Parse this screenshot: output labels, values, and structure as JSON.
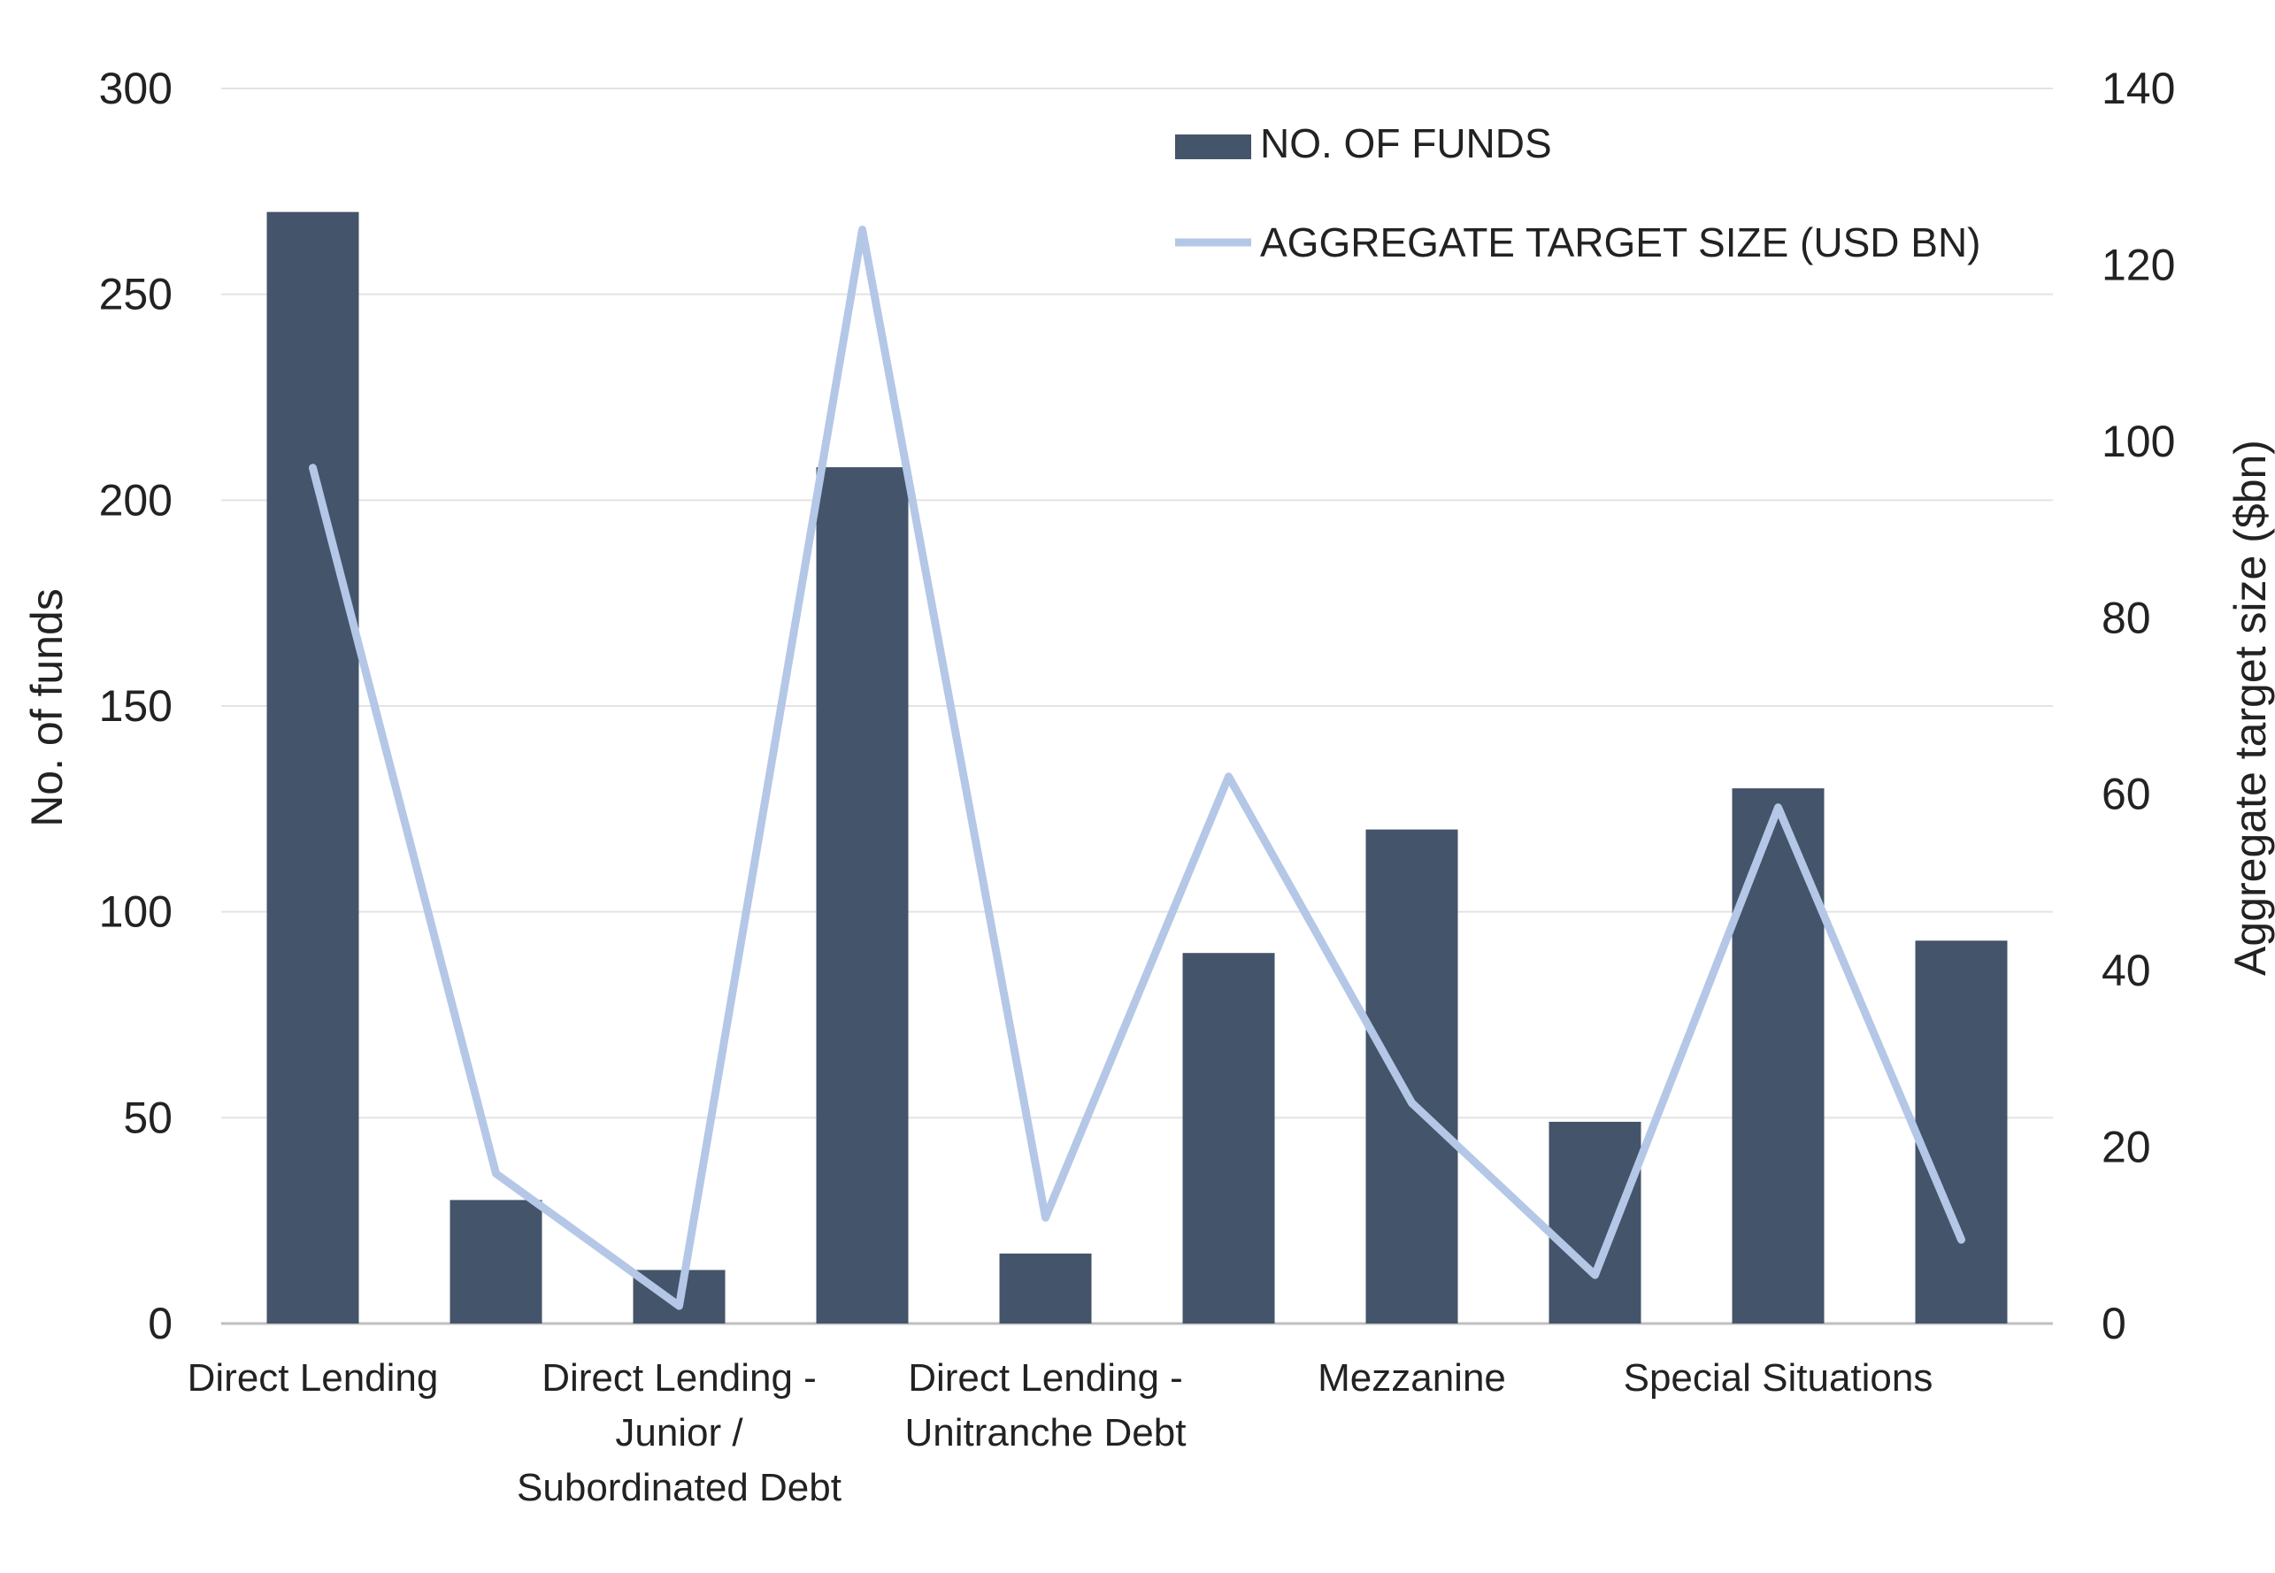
{
  "chart_data": {
    "type": "bar",
    "categories": [
      "Direct Lending",
      "",
      "Direct Lending - Junior / Subordinated Debt",
      "",
      "Direct Lending - Unitranche Debt",
      "",
      "Mezzanine",
      "",
      "Special Situations",
      ""
    ],
    "category_label_lines": [
      [
        "Direct Lending"
      ],
      [],
      [
        "Direct Lending -",
        "Junior /",
        "Subordinated Debt"
      ],
      [],
      [
        "Direct Lending -",
        "Unitranche Debt"
      ],
      [],
      [
        "Mezzanine"
      ],
      [],
      [
        "Special Situations"
      ],
      []
    ],
    "series": [
      {
        "name": "NO. OF FUNDS",
        "type": "bar",
        "axis": "left",
        "color": "#44546A",
        "values": [
          270,
          30,
          13,
          208,
          17,
          90,
          120,
          49,
          130,
          93
        ]
      },
      {
        "name": "AGGREGATE TARGET SIZE (USD BN)",
        "type": "line",
        "axis": "right",
        "color": "#B4C7E7",
        "values": [
          97,
          17,
          2,
          124,
          12,
          62,
          25,
          5.5,
          58.5,
          9.5
        ]
      }
    ],
    "ylabel": "No. of funds",
    "y2label": "Aggregate target size ($bn)",
    "ylim": [
      0,
      300
    ],
    "y2lim": [
      0,
      140
    ],
    "yticks": [
      0,
      50,
      100,
      150,
      200,
      250,
      300
    ],
    "y2ticks": [
      0,
      20,
      40,
      60,
      80,
      100,
      120,
      140
    ],
    "grid": true,
    "legend": "top-right"
  }
}
